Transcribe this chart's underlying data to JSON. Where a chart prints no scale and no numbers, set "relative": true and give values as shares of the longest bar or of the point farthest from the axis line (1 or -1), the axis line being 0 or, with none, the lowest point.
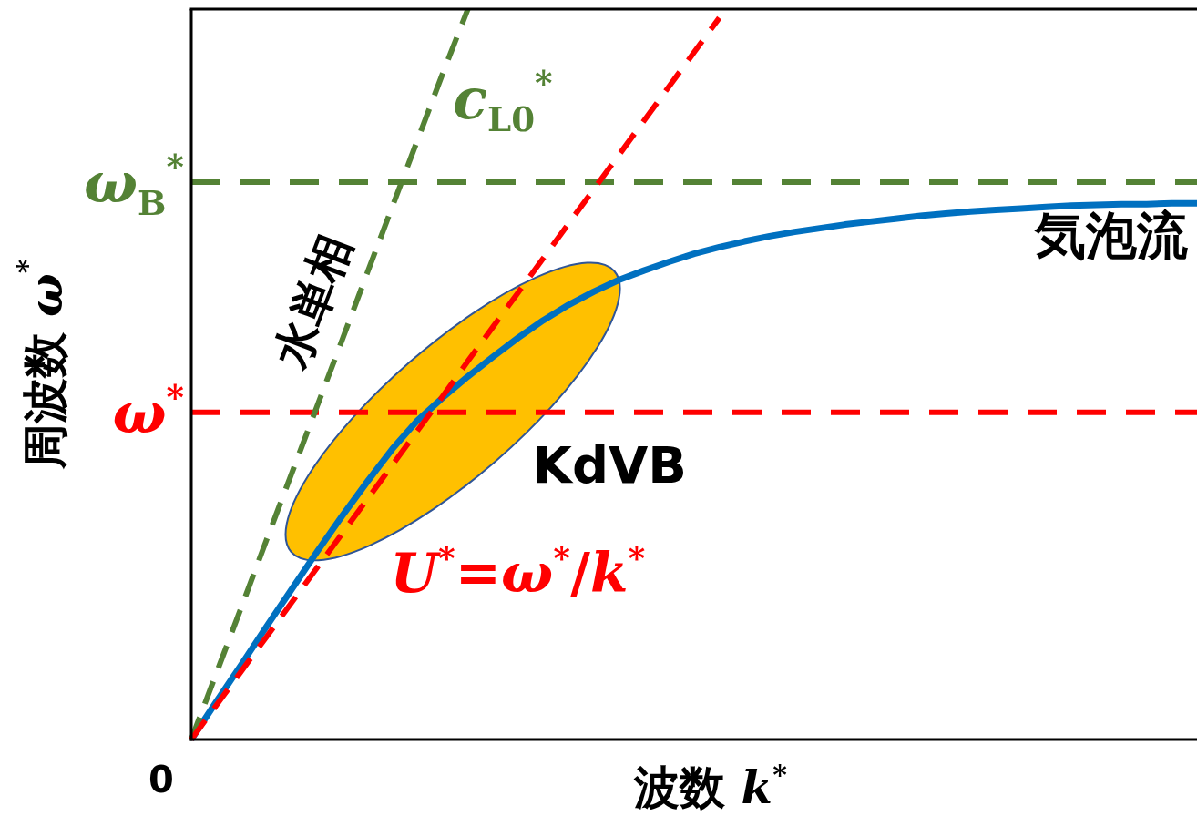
{
  "chart_data": {
    "type": "line",
    "relative": true,
    "xlabel": "波数 k$^{*}$",
    "ylabel": "周波数 ω$^{*}$",
    "categories": [
      null,
      null,
      null,
      null,
      null,
      null,
      null,
      null,
      null,
      null,
      null,
      null,
      null,
      null,
      null,
      null,
      null,
      null,
      null,
      null,
      null,
      null,
      null,
      null,
      null,
      null,
      null,
      null,
      null,
      null,
      null,
      null,
      null,
      null,
      null,
      null,
      null,
      null,
      null,
      null,
      null
    ],
    "series": [
      {
        "name": "気泡流",
        "color": "#0070c0",
        "line_style": "solid",
        "values": [
          0,
          0.052,
          0.103,
          0.155,
          0.206,
          0.257,
          0.306,
          0.353,
          0.398,
          0.437,
          0.468,
          0.497,
          0.524,
          0.55,
          0.574,
          0.595,
          0.613,
          0.629,
          0.642,
          0.654,
          0.665,
          0.674,
          0.682,
          0.689,
          0.695,
          0.7,
          0.705,
          0.709,
          0.713,
          0.717,
          0.72,
          0.723,
          0.725,
          0.727,
          0.729,
          0.731,
          0.732,
          0.733,
          0.733,
          0.734,
          0.734
        ]
      },
      {
        "name": "c$_{L0}$$^{*}$",
        "color": "#548235",
        "line_style": "dashed",
        "values": [
          0,
          0.091,
          0.182,
          0.274,
          0.365,
          0.456,
          0.547,
          0.639,
          0.73,
          0.821,
          0.912,
          1,
          null,
          null,
          null,
          null,
          null,
          null,
          null,
          null,
          null,
          null,
          null,
          null,
          null,
          null,
          null,
          null,
          null,
          null,
          null,
          null,
          null,
          null,
          null,
          null,
          null,
          null,
          null,
          null,
          null
        ]
      },
      {
        "name": "U$^{*}$=ω$^{*}$/k$^{*}$",
        "color": "#ff0000",
        "line_style": "dashed",
        "values": [
          0,
          0.047,
          0.094,
          0.141,
          0.188,
          0.235,
          0.282,
          0.329,
          0.376,
          0.423,
          0.47,
          0.518,
          0.565,
          0.612,
          0.659,
          0.706,
          0.753,
          0.8,
          0.847,
          0.894,
          0.941,
          0.988,
          null,
          null,
          null,
          null,
          null,
          null,
          null,
          null,
          null,
          null,
          null,
          null,
          null,
          null,
          null,
          null,
          null,
          null,
          null
        ]
      }
    ],
    "ref_lines": [
      {
        "axis": "y",
        "value": 0.763,
        "label": "ω$_{B}$$^{*}$",
        "color": "#548235",
        "line_style": "dashed"
      },
      {
        "axis": "y",
        "value": 0.448,
        "label": "ω$^{*}$",
        "color": "#ff0000",
        "line_style": "dashed"
      }
    ],
    "annotations": [
      "0",
      "KdVB",
      "水単相"
    ]
  }
}
